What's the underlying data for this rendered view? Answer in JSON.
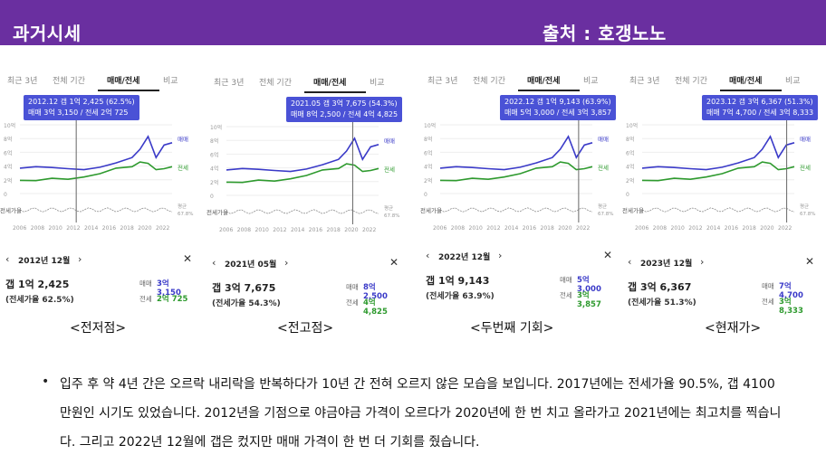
{
  "header": {
    "left_title": "과거시세",
    "right_title": "출처 : 호갱노노"
  },
  "tabs": [
    "최근 3년",
    "전체 기간",
    "매매/전세",
    "비교"
  ],
  "legend": {
    "trade": "매매",
    "rent": "전세",
    "avg": "평균",
    "avg_value": "67.8%",
    "ratio_axis": "전세가율"
  },
  "y_ticks": [
    "10억",
    "8억",
    "6억",
    "4억",
    "2억",
    "0"
  ],
  "x_ticks": [
    "2006",
    "2008",
    "2010",
    "2012",
    "2014",
    "2016",
    "2018",
    "2020",
    "2022"
  ],
  "panels": [
    {
      "tooltip_line1": "2012.12  갭 1억 2,425 (62.5%)",
      "tooltip_line2": "매매 3억 3,150 / 전세 2억 725",
      "month": "2012년 12월",
      "gap": "갭 1억 2,425",
      "ratio": "(전세가율 62.5%)",
      "trade_label": "매매",
      "trade_value": "3억 3,150",
      "rent_label": "전세",
      "rent_value": "2억 725",
      "caption": "<전저점>"
    },
    {
      "tooltip_line1": "2021.05  갭 3억 7,675 (54.3%)",
      "tooltip_line2": "매매 8억 2,500 / 전세 4억 4,825",
      "month": "2021년 05월",
      "gap": "갭 3억 7,675",
      "ratio": "(전세가율 54.3%)",
      "trade_label": "매매",
      "trade_value": "8억 2,500",
      "rent_label": "전세",
      "rent_value": "4억 4,825",
      "caption": "<전고점>"
    },
    {
      "tooltip_line1": "2022.12  갭 1억 9,143 (63.9%)",
      "tooltip_line2": "매매 5억 3,000 / 전세 3억 3,857",
      "month": "2022년 12월",
      "gap": "갭 1억 9,143",
      "ratio": "(전세가율 63.9%)",
      "trade_label": "매매",
      "trade_value": "5억 3,000",
      "rent_label": "전세",
      "rent_value": "3억 3,857",
      "caption": "<두번째 기회>"
    },
    {
      "tooltip_line1": "2023.12  갭 3억 6,367 (51.3%)",
      "tooltip_line2": "매매 7억 4,700 / 전세 3억 8,333",
      "month": "2023년 12월",
      "gap": "갭 3억 6,367",
      "ratio": "(전세가율 51.3%)",
      "trade_label": "매매",
      "trade_value": "7억 4,700",
      "rent_label": "전세",
      "rent_value": "3억 8,333",
      "caption": "<현재가>"
    }
  ],
  "description": "입주 후 약 4년 간은 오르락 내리락을 반복하다가 10년 간 전혀 오르지 않은 모습을 보입니다. 2017년에는 전세가율 90.5%, 갭 4100만원인 시기도 있었습니다. 2012년을 기점으로 야금야금 가격이 오르다가 2020년에 한 번 치고 올라가고 2021년에는 최고치를 찍습니다. 그리고 2022년 12월에 갭은 컸지만 매매 가격이 한 번 더 기회를 줬습니다.",
  "colors": {
    "header_bg": "#6a2fa0",
    "trade_line": "#3a3ac8",
    "rent_line": "#2e9a2e",
    "ratio_line": "#999999",
    "tooltip_bg": "#4a52d6"
  },
  "chart_data": {
    "type": "line",
    "x": [
      2005,
      2007,
      2009,
      2011,
      2013,
      2015,
      2017,
      2019,
      2020,
      2021,
      2022,
      2023,
      2024
    ],
    "series": [
      {
        "name": "매매",
        "values": [
          3.7,
          3.9,
          3.8,
          3.6,
          3.5,
          3.8,
          4.5,
          5.2,
          6.5,
          8.25,
          5.3,
          7.0,
          7.47
        ]
      },
      {
        "name": "전세",
        "values": [
          1.8,
          2.0,
          2.1,
          2.2,
          2.3,
          3.0,
          3.6,
          4.0,
          4.5,
          4.48,
          3.39,
          3.7,
          3.83
        ]
      }
    ],
    "ylabel": "",
    "ylim": [
      0,
      10
    ]
  }
}
